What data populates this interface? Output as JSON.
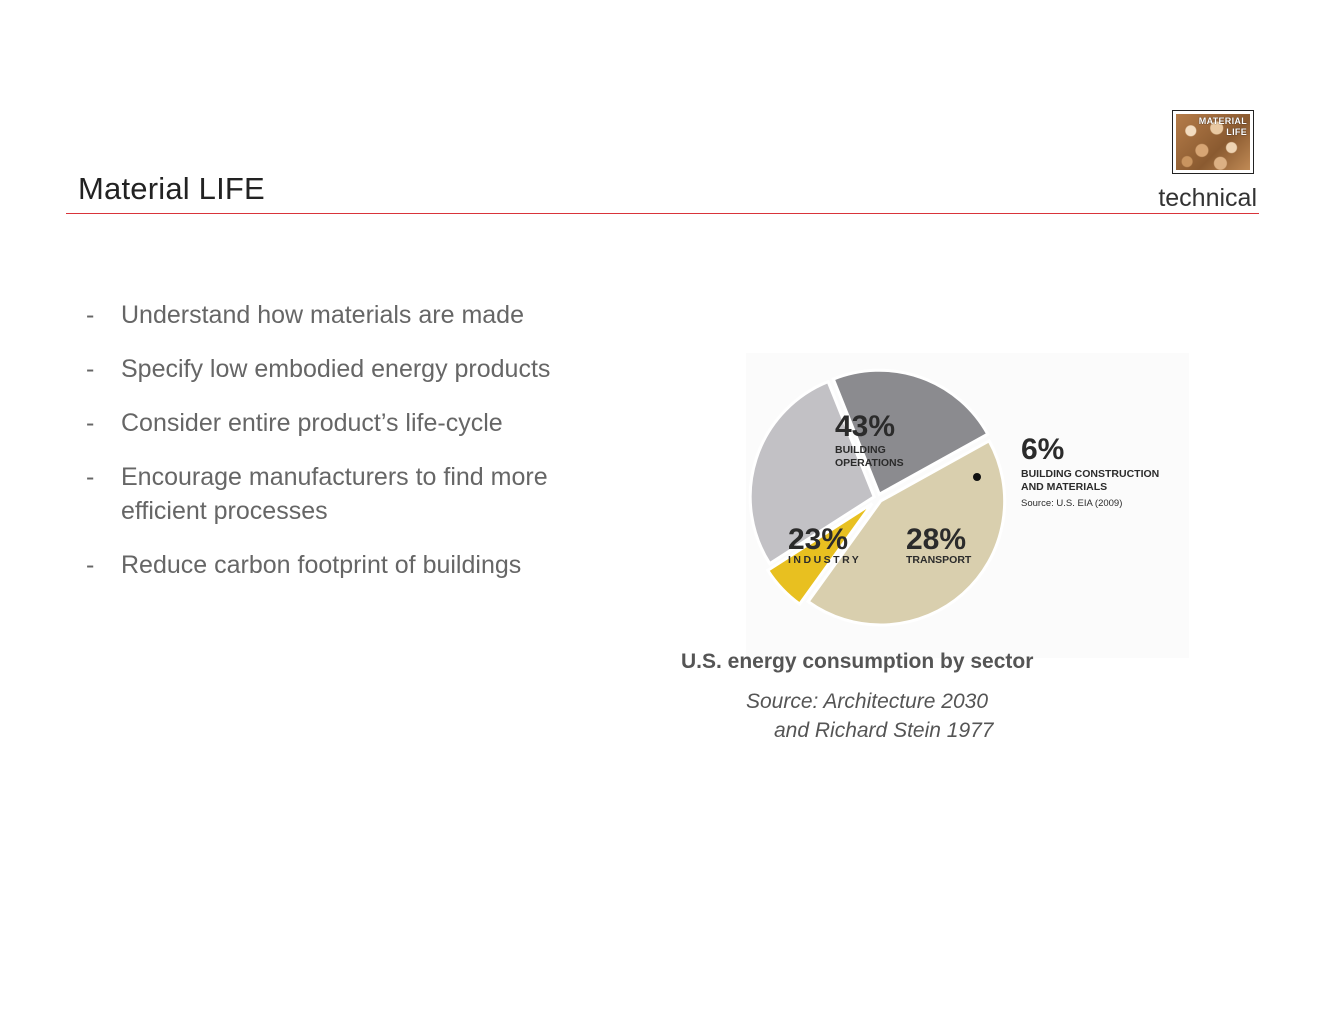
{
  "header": {
    "title": "Material LIFE",
    "tag": "technical",
    "logo_text": [
      "MATERIAL",
      "LIFE"
    ],
    "rule_color": "#d9343a"
  },
  "bullets": [
    {
      "dash": "-",
      "text": "Understand how materials are made"
    },
    {
      "dash": "-",
      "text": "Specify low embodied energy products"
    },
    {
      "dash": "-",
      "text": "Consider entire product’s life-cycle"
    },
    {
      "dash": "-",
      "text": "Encourage manufacturers to find more efficient processes"
    },
    {
      "dash": "-",
      "text": "Reduce carbon footprint of buildings"
    }
  ],
  "chart_data": {
    "type": "pie",
    "title": "",
    "slices": [
      {
        "value": 43,
        "pct": "43%",
        "label_lines": [
          "BUILDING",
          "OPERATIONS"
        ],
        "color": "#d9cfae"
      },
      {
        "value": 6,
        "pct": "6%",
        "label_lines": [
          "BUILDING CONSTRUCTION",
          "AND MATERIALS"
        ],
        "color": "#e8c020"
      },
      {
        "value": 28,
        "pct": "28%",
        "label_lines": [
          "TRANSPORT"
        ],
        "color": "#c2c1c5"
      },
      {
        "value": 23,
        "pct": "23%",
        "label_lines": [
          "INDUSTRY"
        ],
        "color": "#8b8b8f"
      }
    ],
    "inner_source": "Source: U.S. EIA (2009)"
  },
  "caption": "U.S. energy consumption by sector",
  "source_lines": [
    "Source: Architecture 2030",
    "and Richard Stein 1977"
  ]
}
